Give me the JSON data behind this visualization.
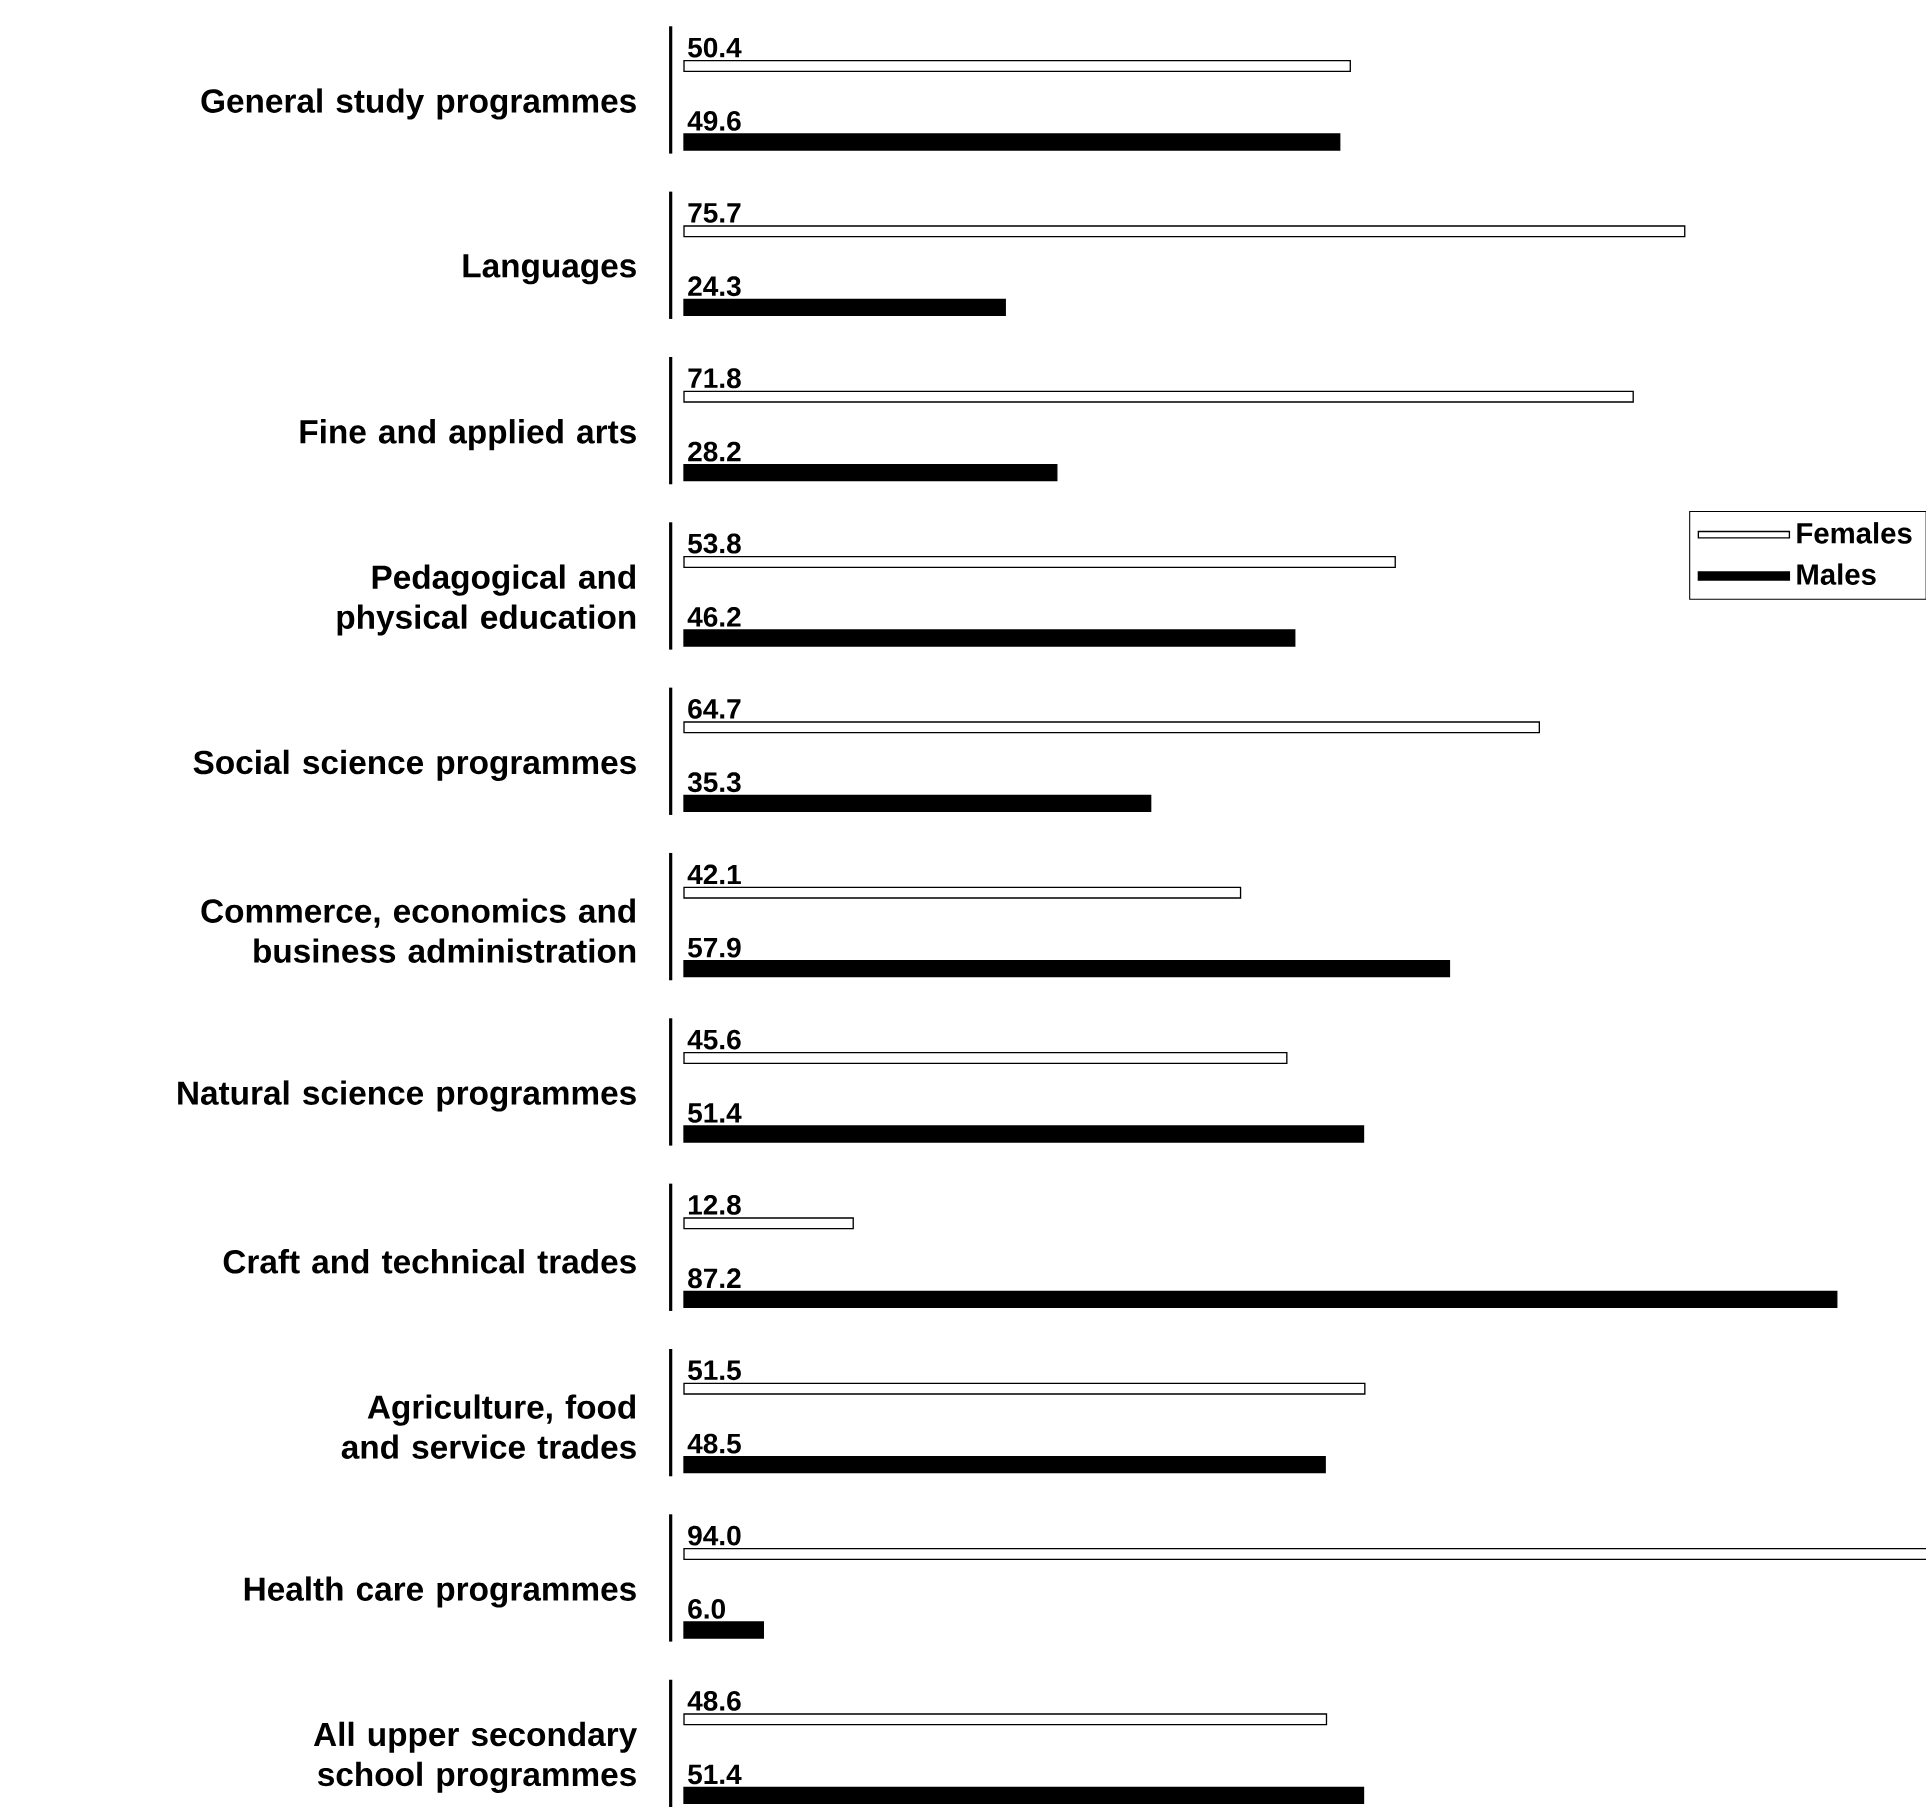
{
  "chart_data": {
    "type": "bar",
    "orientation": "horizontal",
    "legend": "right",
    "categories": [
      "General study programmes",
      "Languages",
      "Fine and applied arts",
      "Pedagogical and physical education",
      "Social science programmes",
      "Commerce, economics and business administration",
      "Natural science programmes",
      "Craft and technical trades",
      "Agriculture, food and service trades",
      "Health care programmes",
      "All upper secondary school programmes"
    ],
    "series": [
      {
        "name": "Females",
        "color": "#ffffff",
        "values": [
          50.4,
          75.7,
          71.8,
          53.8,
          64.7,
          42.1,
          45.6,
          12.8,
          51.5,
          94.0,
          48.6
        ],
        "value_labels": [
          "50.4",
          "75.7",
          "71.8",
          "53.8",
          "64.7",
          "42.1",
          "45.6",
          "12.8",
          "51.5",
          "94.0",
          "48.6"
        ]
      },
      {
        "name": "Males",
        "color": "#000000",
        "values": [
          49.6,
          24.3,
          28.2,
          46.2,
          35.3,
          57.9,
          51.4,
          87.2,
          48.5,
          6.0,
          51.4
        ],
        "value_labels": [
          "49.6",
          "24.3",
          "28.2",
          "46.2",
          "35.3",
          "57.9",
          "51.4",
          "87.2",
          "48.5",
          "6.0",
          "51.4"
        ]
      }
    ]
  }
}
